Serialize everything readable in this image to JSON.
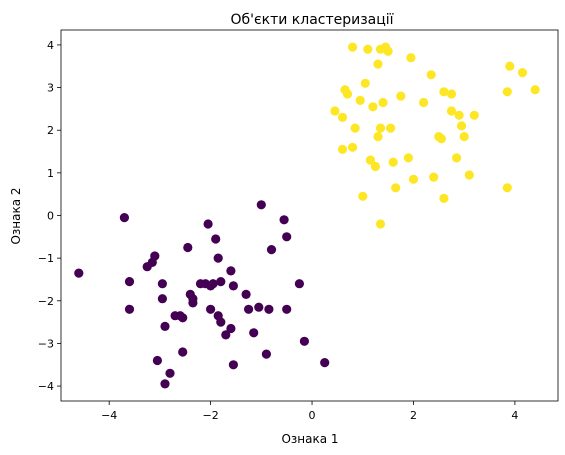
{
  "chart_data": {
    "type": "scatter",
    "title": "Об'єкти кластеризації",
    "xlabel": "Ознака 1",
    "ylabel": "Ознака 2",
    "xlim": [
      -4.95,
      4.85
    ],
    "ylim": [
      -4.35,
      4.35
    ],
    "xticks": [
      -4,
      -2,
      0,
      2,
      4
    ],
    "yticks": [
      -4,
      -3,
      -2,
      -1,
      0,
      1,
      2,
      3,
      4
    ],
    "grid": false,
    "series": [
      {
        "color": "#440154",
        "points": [
          [
            -4.6,
            -1.35
          ],
          [
            -3.7,
            -0.05
          ],
          [
            -3.6,
            -1.55
          ],
          [
            -3.6,
            -2.2
          ],
          [
            -3.25,
            -1.2
          ],
          [
            -3.15,
            -1.1
          ],
          [
            -3.1,
            -0.95
          ],
          [
            -3.05,
            -3.4
          ],
          [
            -2.95,
            -1.95
          ],
          [
            -2.95,
            -1.6
          ],
          [
            -2.9,
            -2.6
          ],
          [
            -2.9,
            -3.95
          ],
          [
            -2.8,
            -3.7
          ],
          [
            -2.7,
            -2.35
          ],
          [
            -2.6,
            -2.35
          ],
          [
            -2.55,
            -2.4
          ],
          [
            -2.55,
            -3.2
          ],
          [
            -2.45,
            -0.75
          ],
          [
            -2.4,
            -1.85
          ],
          [
            -2.35,
            -2.05
          ],
          [
            -2.35,
            -1.95
          ],
          [
            -2.2,
            -1.6
          ],
          [
            -2.1,
            -1.6
          ],
          [
            -2.05,
            -0.2
          ],
          [
            -2.0,
            -1.65
          ],
          [
            -2.0,
            -2.2
          ],
          [
            -1.95,
            -1.6
          ],
          [
            -1.9,
            -0.55
          ],
          [
            -1.85,
            -1.0
          ],
          [
            -1.85,
            -2.35
          ],
          [
            -1.8,
            -2.5
          ],
          [
            -1.8,
            -1.55
          ],
          [
            -1.7,
            -2.8
          ],
          [
            -1.6,
            -1.3
          ],
          [
            -1.6,
            -2.65
          ],
          [
            -1.55,
            -3.5
          ],
          [
            -1.55,
            -1.65
          ],
          [
            -1.3,
            -1.85
          ],
          [
            -1.25,
            -2.2
          ],
          [
            -1.15,
            -2.75
          ],
          [
            -1.05,
            -2.15
          ],
          [
            -1.0,
            0.25
          ],
          [
            -0.9,
            -3.25
          ],
          [
            -0.85,
            -2.2
          ],
          [
            -0.8,
            -0.8
          ],
          [
            -0.55,
            -0.1
          ],
          [
            -0.5,
            -0.5
          ],
          [
            -0.5,
            -2.2
          ],
          [
            -0.25,
            -1.6
          ],
          [
            -0.15,
            -2.95
          ],
          [
            0.25,
            -3.45
          ]
        ]
      },
      {
        "color": "#fde725",
        "points": [
          [
            0.45,
            2.45
          ],
          [
            0.6,
            2.3
          ],
          [
            0.6,
            1.55
          ],
          [
            0.65,
            2.95
          ],
          [
            0.7,
            2.85
          ],
          [
            0.8,
            3.95
          ],
          [
            0.85,
            2.05
          ],
          [
            0.8,
            1.6
          ],
          [
            0.95,
            2.7
          ],
          [
            1.0,
            0.45
          ],
          [
            1.05,
            3.1
          ],
          [
            1.1,
            3.9
          ],
          [
            1.15,
            1.3
          ],
          [
            1.2,
            2.55
          ],
          [
            1.25,
            1.15
          ],
          [
            1.3,
            3.55
          ],
          [
            1.3,
            1.85
          ],
          [
            1.35,
            2.05
          ],
          [
            1.35,
            3.9
          ],
          [
            1.4,
            2.65
          ],
          [
            1.35,
            -0.2
          ],
          [
            1.45,
            3.95
          ],
          [
            1.5,
            3.85
          ],
          [
            1.55,
            2.05
          ],
          [
            1.6,
            1.25
          ],
          [
            1.65,
            0.65
          ],
          [
            1.75,
            2.8
          ],
          [
            1.9,
            1.35
          ],
          [
            1.95,
            3.7
          ],
          [
            2.0,
            0.85
          ],
          [
            2.2,
            2.65
          ],
          [
            2.35,
            3.3
          ],
          [
            2.4,
            0.9
          ],
          [
            2.5,
            1.85
          ],
          [
            2.55,
            1.8
          ],
          [
            2.6,
            2.9
          ],
          [
            2.6,
            0.4
          ],
          [
            2.75,
            2.85
          ],
          [
            2.75,
            2.45
          ],
          [
            2.85,
            1.35
          ],
          [
            2.9,
            2.35
          ],
          [
            2.95,
            2.1
          ],
          [
            3.0,
            1.85
          ],
          [
            3.1,
            0.95
          ],
          [
            3.2,
            2.35
          ],
          [
            3.9,
            3.5
          ],
          [
            3.85,
            2.9
          ],
          [
            3.85,
            0.65
          ],
          [
            4.15,
            3.35
          ],
          [
            4.4,
            2.95
          ]
        ]
      }
    ]
  }
}
